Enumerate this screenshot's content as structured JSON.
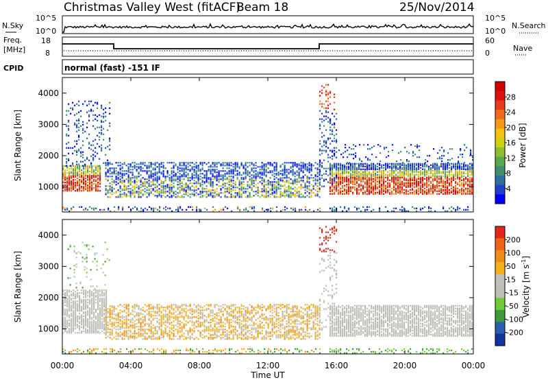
{
  "header": {
    "station": "Christmas Valley West (fitACF)",
    "beam": "Beam 18",
    "date": "25/Nov/2014"
  },
  "panels": {
    "noise": {
      "left_label": "N.Sky",
      "right_label": "N.Search",
      "left_ticks": [
        "10^5",
        "10^0"
      ],
      "right_ticks": [
        "10^5",
        "10^0"
      ]
    },
    "freq": {
      "left_label_1": "Freq.",
      "left_label_2": "[MHz]",
      "right_label": "Nave",
      "left_ticks": [
        "18",
        "8"
      ],
      "right_ticks": [
        "60",
        "0"
      ]
    },
    "cpid": {
      "label": "CPID",
      "value": "normal (fast) -151 IF"
    }
  },
  "chart_data": [
    {
      "type": "heatmap",
      "name": "power",
      "ylabel": "Slant Range [km]",
      "y_ticks": [
        "1000",
        "2000",
        "3000",
        "4000"
      ],
      "y_tick_values": [
        1000,
        2000,
        3000,
        4000
      ],
      "ylim": [
        200,
        4500
      ],
      "xlim_hours": [
        0,
        24
      ],
      "colorbar": {
        "label": "Power [dB]",
        "ticks": [
          "28",
          "24",
          "20",
          "16",
          "12",
          "8",
          "4"
        ],
        "colors": [
          "#0000ff",
          "#1f3fcc",
          "#2f6fa0",
          "#3f8f6f",
          "#5aa84a",
          "#8fbf2f",
          "#cfd00f",
          "#f4c20f",
          "#f39a18",
          "#ee6a1c",
          "#e83a1c",
          "#e01010",
          "#d00000"
        ]
      }
    },
    {
      "type": "heatmap",
      "name": "velocity",
      "ylabel": "Slant Range [km]",
      "y_ticks": [
        "1000",
        "2000",
        "3000",
        "4000"
      ],
      "y_tick_values": [
        1000,
        2000,
        3000,
        4000
      ],
      "ylim": [
        200,
        4500
      ],
      "xlim_hours": [
        0,
        24
      ],
      "colorbar": {
        "label": "Velocity [m s",
        "label_sup": "-1",
        "label_end": "]",
        "ticks": [
          "200",
          "100",
          "50",
          "15",
          "-15",
          "-50",
          "-100",
          "-200"
        ],
        "colors": [
          "#1432a0",
          "#2a5fb0",
          "#3d9b3d",
          "#6ecb3a",
          "#bfbfb5",
          "#c0c0bc",
          "#f3b11a",
          "#ef8d18",
          "#ee6416",
          "#e0281a"
        ]
      }
    }
  ],
  "x_axis": {
    "ticks": [
      "00:00",
      "04:00",
      "08:00",
      "12:00",
      "16:00",
      "20:00",
      "00:00"
    ],
    "tick_hours": [
      0,
      4,
      8,
      12,
      16,
      20,
      24
    ],
    "label": "Time UT"
  }
}
